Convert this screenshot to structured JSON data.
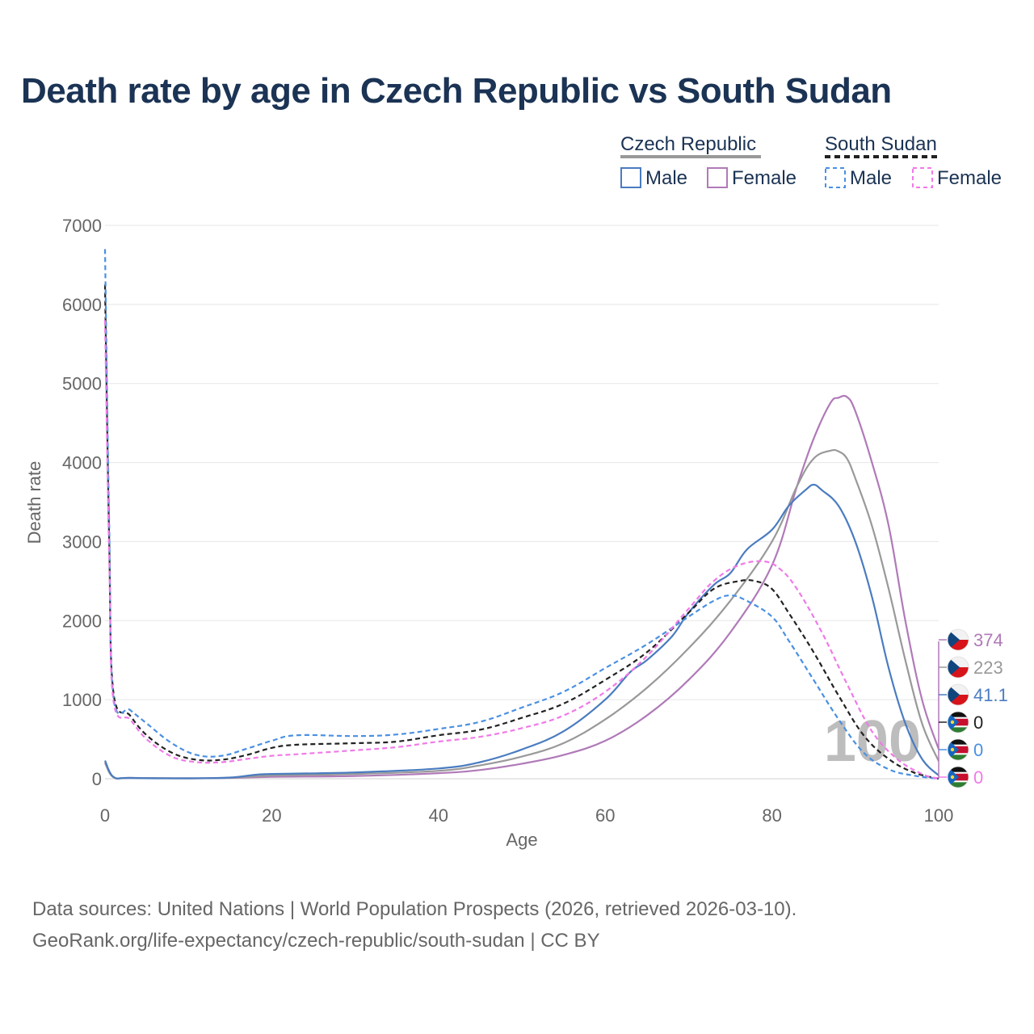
{
  "title": "Death rate by age in Czech Republic vs South Sudan",
  "source_line1": "Data sources: United Nations | World Population Prospects (2026, retrieved 2026-03-10).",
  "source_line2": "GeoRank.org/life-expectancy/czech-republic/south-sudan | CC BY",
  "watermark": "100",
  "legend": {
    "groups": [
      {
        "name": "Czech Republic",
        "color": "#999999",
        "dash": false
      },
      {
        "name": "South Sudan",
        "color": "#222222",
        "dash": true
      }
    ],
    "items": [
      {
        "label": "Male",
        "color": "#4a7cc0",
        "dash": false
      },
      {
        "label": "Female",
        "color": "#b07ab8",
        "dash": false
      },
      {
        "label": "Male",
        "color": "#4a90e2",
        "dash": true
      },
      {
        "label": "Female",
        "color": "#f07ae8",
        "dash": true
      }
    ]
  },
  "end_labels": [
    {
      "text": "374",
      "color": "#b07ab8",
      "flag": "czech-flag-icon"
    },
    {
      "text": "223",
      "color": "#999999",
      "flag": "czech-flag-icon"
    },
    {
      "text": "41.1",
      "color": "#4a7cc0",
      "flag": "czech-flag-icon"
    },
    {
      "text": "0",
      "color": "#222222",
      "flag": "south-sudan-flag-icon"
    },
    {
      "text": "0",
      "color": "#4a90e2",
      "flag": "south-sudan-flag-icon"
    },
    {
      "text": "0",
      "color": "#f07ae8",
      "flag": "south-sudan-flag-icon"
    }
  ],
  "chart_data": {
    "type": "line",
    "xlabel": "Age",
    "ylabel": "Death rate",
    "xlim": [
      0,
      100
    ],
    "ylim": [
      0,
      7000
    ],
    "xticks": [
      0,
      20,
      40,
      60,
      80,
      100
    ],
    "yticks": [
      0,
      1000,
      2000,
      3000,
      4000,
      5000,
      6000,
      7000
    ],
    "grid": true,
    "series": [
      {
        "name": "Czech Republic Female",
        "color": "#b07ab8",
        "dash": false,
        "points": [
          [
            0,
            200
          ],
          [
            1,
            20
          ],
          [
            3,
            10
          ],
          [
            10,
            5
          ],
          [
            15,
            10
          ],
          [
            20,
            25
          ],
          [
            30,
            35
          ],
          [
            40,
            70
          ],
          [
            45,
            110
          ],
          [
            50,
            190
          ],
          [
            55,
            300
          ],
          [
            60,
            480
          ],
          [
            65,
            800
          ],
          [
            70,
            1250
          ],
          [
            75,
            1850
          ],
          [
            80,
            2700
          ],
          [
            83,
            3700
          ],
          [
            85,
            4300
          ],
          [
            87,
            4750
          ],
          [
            88,
            4820
          ],
          [
            89,
            4830
          ],
          [
            90,
            4650
          ],
          [
            92,
            4000
          ],
          [
            94,
            3200
          ],
          [
            96,
            2000
          ],
          [
            98,
            1000
          ],
          [
            100,
            374
          ]
        ]
      },
      {
        "name": "Czech Republic Total",
        "color": "#999999",
        "dash": false,
        "points": [
          [
            0,
            210
          ],
          [
            1,
            20
          ],
          [
            3,
            10
          ],
          [
            10,
            5
          ],
          [
            15,
            12
          ],
          [
            20,
            40
          ],
          [
            30,
            60
          ],
          [
            40,
            100
          ],
          [
            45,
            170
          ],
          [
            50,
            280
          ],
          [
            55,
            450
          ],
          [
            60,
            750
          ],
          [
            65,
            1150
          ],
          [
            70,
            1650
          ],
          [
            75,
            2250
          ],
          [
            80,
            3000
          ],
          [
            83,
            3700
          ],
          [
            85,
            4050
          ],
          [
            87,
            4150
          ],
          [
            88,
            4140
          ],
          [
            89,
            4050
          ],
          [
            90,
            3800
          ],
          [
            92,
            3200
          ],
          [
            94,
            2400
          ],
          [
            96,
            1500
          ],
          [
            98,
            700
          ],
          [
            100,
            223
          ]
        ]
      },
      {
        "name": "Czech Republic Male",
        "color": "#4a7cc0",
        "dash": false,
        "points": [
          [
            0,
            230
          ],
          [
            1,
            25
          ],
          [
            3,
            10
          ],
          [
            10,
            5
          ],
          [
            15,
            15
          ],
          [
            18,
            50
          ],
          [
            20,
            60
          ],
          [
            30,
            80
          ],
          [
            40,
            130
          ],
          [
            45,
            210
          ],
          [
            50,
            370
          ],
          [
            55,
            600
          ],
          [
            60,
            1000
          ],
          [
            63,
            1350
          ],
          [
            65,
            1500
          ],
          [
            68,
            1800
          ],
          [
            70,
            2100
          ],
          [
            73,
            2450
          ],
          [
            75,
            2600
          ],
          [
            77,
            2900
          ],
          [
            80,
            3150
          ],
          [
            82,
            3450
          ],
          [
            84,
            3650
          ],
          [
            85,
            3720
          ],
          [
            86,
            3650
          ],
          [
            88,
            3450
          ],
          [
            90,
            3000
          ],
          [
            92,
            2300
          ],
          [
            94,
            1400
          ],
          [
            96,
            700
          ],
          [
            98,
            250
          ],
          [
            100,
            41.1
          ]
        ]
      },
      {
        "name": "South Sudan Total",
        "color": "#222222",
        "dash": true,
        "points": [
          [
            0,
            6250
          ],
          [
            0.5,
            3000
          ],
          [
            1,
            1100
          ],
          [
            3,
            800
          ],
          [
            5,
            550
          ],
          [
            8,
            330
          ],
          [
            11,
            240
          ],
          [
            14,
            240
          ],
          [
            17,
            300
          ],
          [
            20,
            390
          ],
          [
            23,
            430
          ],
          [
            30,
            450
          ],
          [
            35,
            470
          ],
          [
            40,
            550
          ],
          [
            45,
            620
          ],
          [
            50,
            770
          ],
          [
            55,
            950
          ],
          [
            60,
            1250
          ],
          [
            65,
            1600
          ],
          [
            70,
            2100
          ],
          [
            73,
            2400
          ],
          [
            76,
            2500
          ],
          [
            78,
            2500
          ],
          [
            80,
            2400
          ],
          [
            82,
            2100
          ],
          [
            85,
            1600
          ],
          [
            88,
            1050
          ],
          [
            91,
            550
          ],
          [
            94,
            250
          ],
          [
            97,
            80
          ],
          [
            100,
            0
          ]
        ]
      },
      {
        "name": "South Sudan Male",
        "color": "#4a90e2",
        "dash": true,
        "points": [
          [
            0,
            6700
          ],
          [
            0.5,
            3200
          ],
          [
            1,
            1050
          ],
          [
            3,
            870
          ],
          [
            5,
            700
          ],
          [
            8,
            450
          ],
          [
            11,
            300
          ],
          [
            14,
            290
          ],
          [
            17,
            380
          ],
          [
            20,
            480
          ],
          [
            23,
            550
          ],
          [
            30,
            540
          ],
          [
            35,
            560
          ],
          [
            40,
            630
          ],
          [
            45,
            720
          ],
          [
            50,
            900
          ],
          [
            55,
            1100
          ],
          [
            60,
            1400
          ],
          [
            65,
            1700
          ],
          [
            70,
            2050
          ],
          [
            73,
            2250
          ],
          [
            75,
            2320
          ],
          [
            77,
            2250
          ],
          [
            80,
            2050
          ],
          [
            82,
            1750
          ],
          [
            85,
            1250
          ],
          [
            88,
            750
          ],
          [
            91,
            330
          ],
          [
            94,
            120
          ],
          [
            97,
            40
          ],
          [
            100,
            0
          ]
        ]
      },
      {
        "name": "South Sudan Female",
        "color": "#f07ae8",
        "dash": true,
        "points": [
          [
            0,
            5800
          ],
          [
            0.5,
            2800
          ],
          [
            1,
            1000
          ],
          [
            3,
            750
          ],
          [
            5,
            500
          ],
          [
            8,
            280
          ],
          [
            11,
            210
          ],
          [
            14,
            210
          ],
          [
            17,
            250
          ],
          [
            20,
            290
          ],
          [
            23,
            310
          ],
          [
            30,
            360
          ],
          [
            35,
            400
          ],
          [
            40,
            470
          ],
          [
            45,
            530
          ],
          [
            50,
            640
          ],
          [
            55,
            800
          ],
          [
            60,
            1100
          ],
          [
            65,
            1550
          ],
          [
            70,
            2150
          ],
          [
            73,
            2500
          ],
          [
            76,
            2700
          ],
          [
            79,
            2750
          ],
          [
            81,
            2650
          ],
          [
            83,
            2400
          ],
          [
            86,
            1850
          ],
          [
            89,
            1200
          ],
          [
            92,
            600
          ],
          [
            95,
            250
          ],
          [
            98,
            60
          ],
          [
            100,
            0
          ]
        ]
      }
    ]
  }
}
